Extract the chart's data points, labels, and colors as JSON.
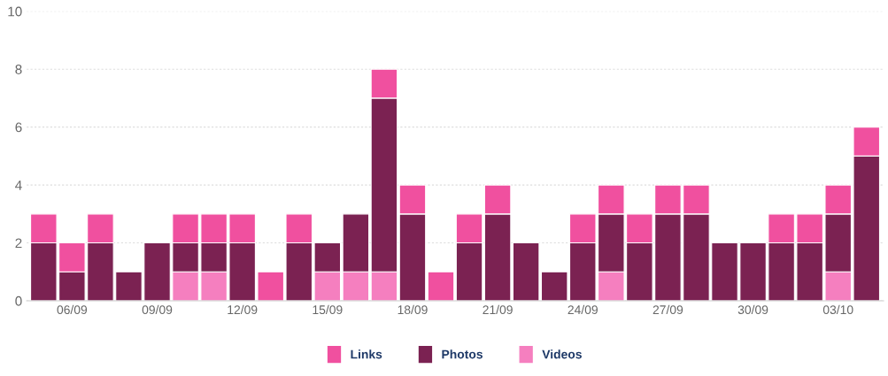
{
  "chart_data": {
    "type": "bar",
    "stacked": true,
    "categories": [
      null,
      "06/09",
      null,
      null,
      "09/09",
      null,
      null,
      "12/09",
      null,
      null,
      "15/09",
      null,
      null,
      "18/09",
      null,
      null,
      "21/09",
      null,
      null,
      "24/09",
      null,
      null,
      "27/09",
      null,
      null,
      "30/09",
      null,
      null,
      "03/10",
      null
    ],
    "series": [
      {
        "name": "Videos",
        "color": "#f57fbf",
        "values": [
          0,
          0,
          0,
          0,
          0,
          1,
          1,
          0,
          0,
          0,
          1,
          1,
          1,
          0,
          0,
          0,
          0,
          0,
          0,
          0,
          1,
          0,
          0,
          0,
          0,
          0,
          0,
          0,
          1,
          0
        ]
      },
      {
        "name": "Photos",
        "color": "#7b2252",
        "values": [
          2,
          1,
          2,
          1,
          2,
          1,
          1,
          2,
          0,
          2,
          1,
          2,
          6,
          3,
          0,
          2,
          3,
          2,
          1,
          2,
          2,
          2,
          3,
          3,
          2,
          2,
          2,
          2,
          2,
          5
        ]
      },
      {
        "name": "Links",
        "color": "#f0509f",
        "values": [
          1,
          1,
          1,
          0,
          0,
          1,
          1,
          1,
          1,
          1,
          0,
          0,
          1,
          1,
          1,
          1,
          1,
          0,
          0,
          1,
          1,
          1,
          1,
          1,
          0,
          0,
          1,
          1,
          1,
          1
        ]
      }
    ],
    "ylim": [
      0,
      10
    ],
    "yticks": [
      0,
      2,
      4,
      6,
      8,
      10
    ],
    "grid": "y",
    "legend": "bottom"
  }
}
